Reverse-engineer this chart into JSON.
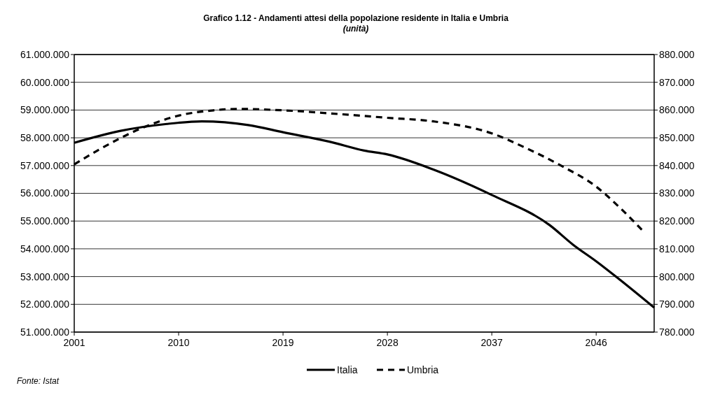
{
  "chart_data": {
    "type": "line",
    "title": "Grafico 1.12 - Andamenti attesi della popolazione residente in Italia e Umbria",
    "subtitle": "(unità)",
    "annotations": [
      "Fonte: Istat"
    ],
    "xlim": [
      2001,
      2051
    ],
    "xticks": [
      2001,
      2010,
      2019,
      2028,
      2037,
      2046
    ],
    "ylim": [
      51000000,
      61000000
    ],
    "yticks": [
      {
        "value": 51000000,
        "label": "51.000.000"
      },
      {
        "value": 52000000,
        "label": "52.000.000"
      },
      {
        "value": 53000000,
        "label": "53.000.000"
      },
      {
        "value": 54000000,
        "label": "54.000.000"
      },
      {
        "value": 55000000,
        "label": "55.000.000"
      },
      {
        "value": 56000000,
        "label": "56.000.000"
      },
      {
        "value": 57000000,
        "label": "57.000.000"
      },
      {
        "value": 58000000,
        "label": "58.000.000"
      },
      {
        "value": 59000000,
        "label": "59.000.000"
      },
      {
        "value": 60000000,
        "label": "60.000.000"
      },
      {
        "value": 61000000,
        "label": "61.000.000"
      }
    ],
    "y2lim": [
      780000,
      880000
    ],
    "y2ticks": [
      {
        "value": 780000,
        "label": "780.000"
      },
      {
        "value": 790000,
        "label": "790.000"
      },
      {
        "value": 800000,
        "label": "800.000"
      },
      {
        "value": 810000,
        "label": "810.000"
      },
      {
        "value": 820000,
        "label": "820.000"
      },
      {
        "value": 830000,
        "label": "830.000"
      },
      {
        "value": 840000,
        "label": "840.000"
      },
      {
        "value": 850000,
        "label": "850.000"
      },
      {
        "value": 860000,
        "label": "860.000"
      },
      {
        "value": 870000,
        "label": "870.000"
      },
      {
        "value": 880000,
        "label": "880.000"
      }
    ],
    "grid": "y",
    "legend": "bottom",
    "marker": "none",
    "series": [
      {
        "name": "Italia",
        "color": "#000000",
        "line_style": "solid",
        "x": [
          2001,
          2005,
          2009,
          2012,
          2016,
          2019,
          2023,
          2026,
          2028,
          2032,
          2037,
          2042,
          2044,
          2046,
          2048,
          2051
        ],
        "values": [
          57820000,
          58250000,
          58500000,
          58590000,
          58460000,
          58200000,
          57860000,
          57540000,
          57400000,
          56850000,
          55940000,
          54850000,
          54150000,
          53550000,
          52900000,
          51880000
        ]
      },
      {
        "name": "Umbria",
        "color": "#000000",
        "line_style": "dashed",
        "axis": "y2",
        "x": [
          2001,
          2003,
          2007,
          2010,
          2013,
          2015,
          2019,
          2024,
          2028,
          2032,
          2037,
          2040,
          2043,
          2046,
          2048,
          2050
        ],
        "values": [
          840400,
          845400,
          853800,
          858000,
          859900,
          860400,
          859900,
          858500,
          857200,
          855900,
          851600,
          846200,
          839900,
          832400,
          825000,
          816600
        ]
      }
    ]
  }
}
